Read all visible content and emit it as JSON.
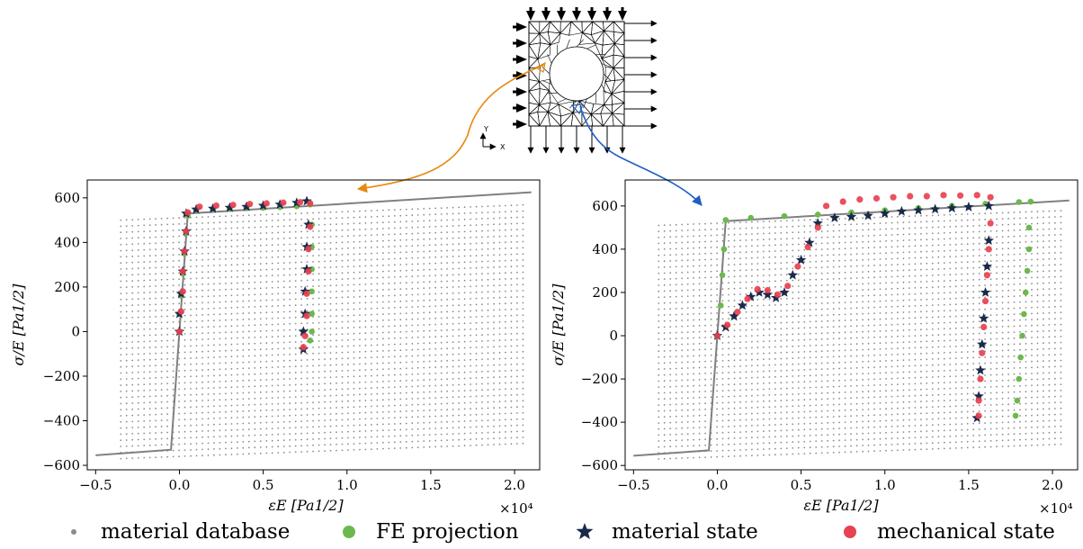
{
  "figure": {
    "colors": {
      "database": "#8c8c8c",
      "fe": "#6cb84e",
      "material": "#1a2a4a",
      "mechanical": "#e8414f",
      "curve": "#808080",
      "arrow_left": "#e68a10",
      "arrow_right": "#1f5fc4"
    },
    "legend": [
      {
        "label": "material database",
        "marker": "dot",
        "color": "#8c8c8c"
      },
      {
        "label": "FE projection",
        "marker": "circle",
        "color": "#6cb84e"
      },
      {
        "label": "material state",
        "marker": "star",
        "color": "#1a2a4a"
      },
      {
        "label": "mechanical state",
        "marker": "circle",
        "color": "#e8414f"
      }
    ],
    "mesh": {
      "icons": [
        "arrow-right-icon",
        "arrow-down-icon",
        "pin-support-icon"
      ],
      "axes_labels": [
        "Y",
        "X"
      ]
    }
  },
  "chart_data": [
    {
      "type": "scatter",
      "panel": "left",
      "xlabel": "εE [Pa1/2]",
      "ylabel": "σ/E [Pa1/2]",
      "x_offset_label": "×10⁴",
      "xlim": [
        -0.55,
        2.15
      ],
      "ylim": [
        -620,
        680
      ],
      "xticks": [
        -0.5,
        0.0,
        0.5,
        1.0,
        1.5,
        2.0
      ],
      "xtick_labels": [
        "−0.5",
        "0.0",
        "0.5",
        "1.0",
        "1.5",
        "2.0"
      ],
      "yticks": [
        -600,
        -400,
        -200,
        0,
        200,
        400,
        600
      ],
      "ytick_labels": [
        "−600",
        "−400",
        "−200",
        "0",
        "200",
        "400",
        "600"
      ],
      "grid": false,
      "database": {
        "x_start": -0.35,
        "x_end": 2.05,
        "y0_start": -570,
        "y0_end": 500,
        "rows": 40,
        "slope": 20
      },
      "curve": [
        [
          -0.5,
          -555
        ],
        [
          -0.05,
          -530
        ],
        [
          0.05,
          530
        ],
        [
          2.1,
          625
        ]
      ],
      "series": [
        {
          "name": "FE projection",
          "points": [
            [
              0.0,
              0
            ],
            [
              0.0,
              80
            ],
            [
              0.01,
              160
            ],
            [
              0.02,
              260
            ],
            [
              0.03,
              350
            ],
            [
              0.04,
              440
            ],
            [
              0.05,
              520
            ],
            [
              0.1,
              545
            ],
            [
              0.2,
              548
            ],
            [
              0.3,
              550
            ],
            [
              0.4,
              553
            ],
            [
              0.5,
              555
            ],
            [
              0.6,
              558
            ],
            [
              0.7,
              562
            ],
            [
              0.78,
              570
            ],
            [
              0.79,
              480
            ],
            [
              0.79,
              380
            ],
            [
              0.79,
              280
            ],
            [
              0.79,
              180
            ],
            [
              0.79,
              80
            ],
            [
              0.79,
              0
            ],
            [
              0.78,
              -40
            ]
          ]
        },
        {
          "name": "material state",
          "points": [
            [
              0.0,
              0
            ],
            [
              0.0,
              80
            ],
            [
              0.01,
              170
            ],
            [
              0.02,
              270
            ],
            [
              0.03,
              360
            ],
            [
              0.04,
              450
            ],
            [
              0.04,
              530
            ],
            [
              0.1,
              548
            ],
            [
              0.2,
              552
            ],
            [
              0.3,
              556
            ],
            [
              0.4,
              560
            ],
            [
              0.5,
              565
            ],
            [
              0.6,
              570
            ],
            [
              0.7,
              578
            ],
            [
              0.76,
              585
            ],
            [
              0.77,
              480
            ],
            [
              0.76,
              380
            ],
            [
              0.76,
              280
            ],
            [
              0.75,
              180
            ],
            [
              0.75,
              80
            ],
            [
              0.74,
              0
            ],
            [
              0.74,
              -80
            ]
          ]
        },
        {
          "name": "mechanical state",
          "points": [
            [
              0.0,
              0
            ],
            [
              0.01,
              90
            ],
            [
              0.02,
              180
            ],
            [
              0.02,
              270
            ],
            [
              0.03,
              360
            ],
            [
              0.04,
              450
            ],
            [
              0.05,
              535
            ],
            [
              0.12,
              560
            ],
            [
              0.22,
              565
            ],
            [
              0.32,
              568
            ],
            [
              0.42,
              572
            ],
            [
              0.52,
              575
            ],
            [
              0.62,
              578
            ],
            [
              0.72,
              580
            ],
            [
              0.78,
              575
            ],
            [
              0.78,
              470
            ],
            [
              0.77,
              370
            ],
            [
              0.77,
              270
            ],
            [
              0.76,
              170
            ],
            [
              0.76,
              70
            ],
            [
              0.75,
              -20
            ],
            [
              0.74,
              -70
            ]
          ]
        }
      ]
    },
    {
      "type": "scatter",
      "panel": "right",
      "xlabel": "εE [Pa1/2]",
      "ylabel": "σ/E [Pa1/2]",
      "x_offset_label": "×10⁴",
      "xlim": [
        -0.55,
        2.15
      ],
      "ylim": [
        -620,
        720
      ],
      "xticks": [
        -0.5,
        0.0,
        0.5,
        1.0,
        1.5,
        2.0
      ],
      "xtick_labels": [
        "−0.5",
        "0.0",
        "0.5",
        "1.0",
        "1.5",
        "2.0"
      ],
      "yticks": [
        -600,
        -400,
        -200,
        0,
        200,
        400,
        600
      ],
      "ytick_labels": [
        "−600",
        "−400",
        "−200",
        "0",
        "200",
        "400",
        "600"
      ],
      "grid": false,
      "database": {
        "x_start": -0.35,
        "x_end": 2.05,
        "y0_start": -570,
        "y0_end": 510,
        "rows": 40,
        "slope": 20
      },
      "curve": [
        [
          -0.5,
          -555
        ],
        [
          -0.05,
          -530
        ],
        [
          0.05,
          530
        ],
        [
          2.1,
          625
        ]
      ],
      "series": [
        {
          "name": "FE projection",
          "points": [
            [
              0.0,
              0
            ],
            [
              0.02,
              140
            ],
            [
              0.03,
              280
            ],
            [
              0.04,
              400
            ],
            [
              0.05,
              535
            ],
            [
              0.2,
              545
            ],
            [
              0.4,
              553
            ],
            [
              0.6,
              560
            ],
            [
              0.8,
              570
            ],
            [
              1.0,
              580
            ],
            [
              1.2,
              590
            ],
            [
              1.4,
              600
            ],
            [
              1.6,
              610
            ],
            [
              1.8,
              618
            ],
            [
              1.87,
              620
            ],
            [
              1.86,
              500
            ],
            [
              1.86,
              400
            ],
            [
              1.85,
              300
            ],
            [
              1.84,
              200
            ],
            [
              1.83,
              100
            ],
            [
              1.82,
              0
            ],
            [
              1.81,
              -100
            ],
            [
              1.8,
              -200
            ],
            [
              1.79,
              -300
            ],
            [
              1.78,
              -370
            ]
          ]
        },
        {
          "name": "material state",
          "points": [
            [
              0.0,
              0
            ],
            [
              0.05,
              40
            ],
            [
              0.1,
              90
            ],
            [
              0.15,
              140
            ],
            [
              0.2,
              180
            ],
            [
              0.25,
              200
            ],
            [
              0.3,
              190
            ],
            [
              0.35,
              175
            ],
            [
              0.4,
              200
            ],
            [
              0.45,
              280
            ],
            [
              0.5,
              350
            ],
            [
              0.55,
              430
            ],
            [
              0.6,
              520
            ],
            [
              0.7,
              545
            ],
            [
              0.8,
              550
            ],
            [
              0.9,
              555
            ],
            [
              1.0,
              565
            ],
            [
              1.1,
              575
            ],
            [
              1.2,
              580
            ],
            [
              1.3,
              585
            ],
            [
              1.4,
              590
            ],
            [
              1.5,
              595
            ],
            [
              1.62,
              600
            ],
            [
              1.62,
              440
            ],
            [
              1.61,
              320
            ],
            [
              1.6,
              200
            ],
            [
              1.59,
              80
            ],
            [
              1.58,
              -40
            ],
            [
              1.57,
              -160
            ],
            [
              1.56,
              -280
            ],
            [
              1.55,
              -380
            ]
          ]
        },
        {
          "name": "mechanical state",
          "points": [
            [
              0.0,
              0
            ],
            [
              0.06,
              50
            ],
            [
              0.12,
              110
            ],
            [
              0.18,
              170
            ],
            [
              0.24,
              215
            ],
            [
              0.3,
              210
            ],
            [
              0.36,
              190
            ],
            [
              0.42,
              230
            ],
            [
              0.48,
              320
            ],
            [
              0.54,
              410
            ],
            [
              0.6,
              500
            ],
            [
              0.65,
              600
            ],
            [
              0.75,
              620
            ],
            [
              0.85,
              630
            ],
            [
              0.95,
              635
            ],
            [
              1.05,
              640
            ],
            [
              1.15,
              645
            ],
            [
              1.25,
              645
            ],
            [
              1.35,
              650
            ],
            [
              1.45,
              648
            ],
            [
              1.55,
              650
            ],
            [
              1.63,
              640
            ],
            [
              1.63,
              520
            ],
            [
              1.62,
              400
            ],
            [
              1.61,
              280
            ],
            [
              1.6,
              160
            ],
            [
              1.59,
              40
            ],
            [
              1.58,
              -80
            ],
            [
              1.57,
              -200
            ],
            [
              1.56,
              -300
            ],
            [
              1.56,
              -370
            ]
          ]
        }
      ]
    }
  ]
}
